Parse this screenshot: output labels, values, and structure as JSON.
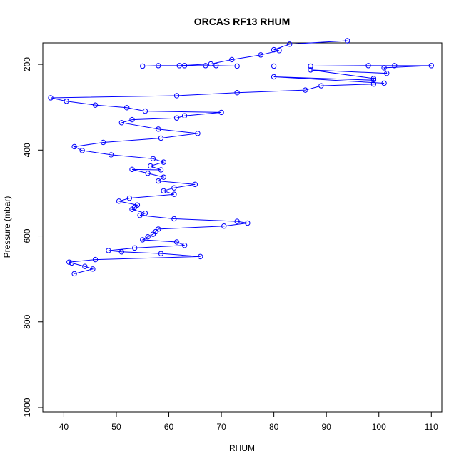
{
  "chart_data": {
    "type": "scatter",
    "title": "ORCAS RF13 RHUM",
    "xlabel": "RHUM",
    "ylabel": "Pressure (mbar)",
    "xlim": [
      36,
      112
    ],
    "ylim": [
      1010,
      150
    ],
    "y_reversed": true,
    "x_ticks": [
      40,
      50,
      60,
      70,
      80,
      90,
      100,
      110
    ],
    "y_ticks": [
      200,
      400,
      600,
      800,
      1000
    ],
    "grid": false,
    "legend": "none",
    "series": [
      {
        "color": "#0000ff",
        "style": "line+open-circle",
        "x": [
          94,
          83,
          80,
          81,
          77.5,
          72,
          68,
          62,
          55,
          58,
          63,
          67,
          69,
          73,
          80,
          87,
          98,
          103,
          110,
          101,
          101.5,
          87,
          99,
          99,
          80,
          101,
          99,
          89,
          86,
          73,
          61.5,
          37.5,
          40.5,
          46,
          52,
          55.5,
          70,
          63,
          61.5,
          53,
          51,
          58,
          65.5,
          58.5,
          47.5,
          42,
          43.5,
          49,
          57,
          59,
          56.5,
          58.5,
          53,
          56,
          59,
          58,
          65,
          61,
          59,
          61,
          52.5,
          50.5,
          54,
          53.5,
          53,
          55.5,
          54.5,
          61,
          73,
          75,
          70.5,
          58,
          57.5,
          57,
          56,
          55,
          61.5,
          63,
          53.5,
          48.5,
          51,
          58.5,
          66,
          46,
          41,
          41.5,
          44,
          45.5,
          42
        ],
        "y": [
          145,
          153,
          166,
          168,
          178,
          189,
          199,
          203,
          204,
          203,
          203,
          203,
          203,
          204,
          204,
          204,
          203,
          203,
          203,
          208,
          221,
          213,
          233,
          237,
          229,
          244,
          246,
          250,
          260,
          266,
          273,
          278,
          286,
          295,
          301,
          309,
          312,
          320,
          325,
          329,
          336,
          351,
          361,
          372,
          382,
          392,
          401,
          411,
          420,
          428,
          437,
          446,
          445,
          454,
          463,
          472,
          480,
          488,
          495,
          503,
          512,
          519,
          528,
          533,
          538,
          547,
          552,
          560,
          566,
          570,
          577,
          584,
          590,
          596,
          602,
          609,
          614,
          622,
          628,
          634,
          637,
          641,
          648,
          655,
          661,
          663,
          671,
          677,
          688
        ]
      }
    ]
  }
}
